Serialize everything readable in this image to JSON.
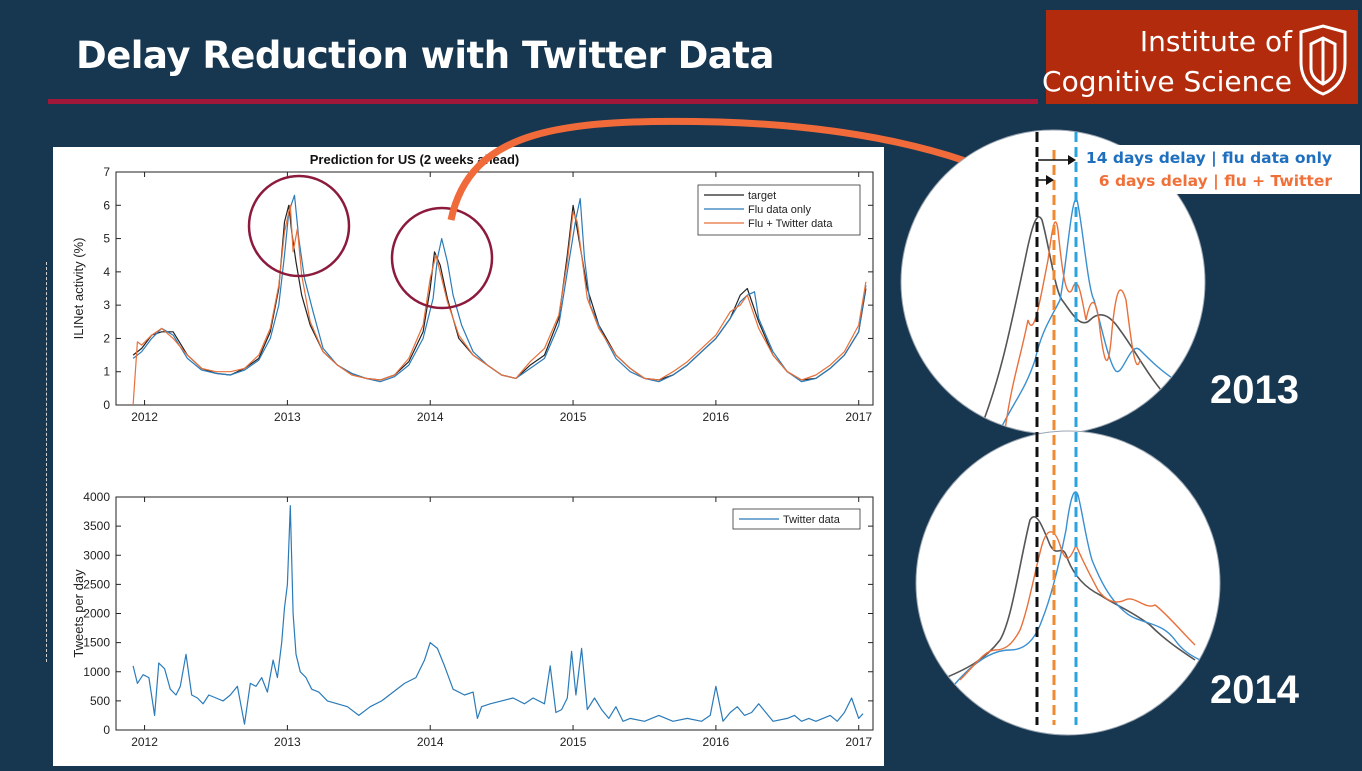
{
  "slide": {
    "title": "Delay Reduction with Twitter Data",
    "logo": {
      "line1": "Institute of",
      "line2": "Cognitive Science"
    },
    "zoom_annotations": {
      "flu_only_delay": "14 days delay | flu data only",
      "twitter_delay": "6 days delay | flu + Twitter",
      "year_top": "2013",
      "year_bottom": "2014"
    },
    "colors": {
      "background": "#17364f",
      "title_rule": "#a0173a",
      "logo_bg": "#b22b0c",
      "target": "#222222",
      "flu_only": "#2b7bb9",
      "flu_twitter": "#e8703a",
      "arrow": "#f06a3a",
      "circle": "#8c1a3c"
    }
  },
  "chart_data": [
    {
      "type": "line",
      "title": "Prediction for US (2 weeks ahead)",
      "ylabel": "ILINet activity (%)",
      "xlabel": "",
      "xlim": [
        2011.8,
        2017.1
      ],
      "ylim": [
        0,
        7
      ],
      "xticks": [
        "2012",
        "2013",
        "2014",
        "2015",
        "2016",
        "2017"
      ],
      "yticks": [
        "0",
        "1",
        "2",
        "3",
        "4",
        "5",
        "6",
        "7"
      ],
      "legend_position": "top-right",
      "series": [
        {
          "name": "target",
          "color": "#222222",
          "x": [
            2011.92,
            2011.98,
            2012.05,
            2012.12,
            2012.2,
            2012.3,
            2012.4,
            2012.5,
            2012.6,
            2012.7,
            2012.8,
            2012.88,
            2012.94,
            2012.98,
            2013.01,
            2013.03,
            2013.06,
            2013.1,
            2013.16,
            2013.25,
            2013.35,
            2013.45,
            2013.55,
            2013.65,
            2013.75,
            2013.85,
            2013.95,
            2014.0,
            2014.03,
            2014.07,
            2014.12,
            2014.2,
            2014.3,
            2014.4,
            2014.5,
            2014.6,
            2014.7,
            2014.8,
            2014.9,
            2014.96,
            2015.0,
            2015.04,
            2015.1,
            2015.18,
            2015.3,
            2015.4,
            2015.5,
            2015.6,
            2015.7,
            2015.8,
            2015.9,
            2016.0,
            2016.1,
            2016.17,
            2016.22,
            2016.3,
            2016.4,
            2016.5,
            2016.6,
            2016.7,
            2016.8,
            2016.9,
            2017.0,
            2017.05
          ],
          "y": [
            1.5,
            1.7,
            2.1,
            2.2,
            2.2,
            1.5,
            1.1,
            0.95,
            0.9,
            1.1,
            1.4,
            2.2,
            3.5,
            5.5,
            6.0,
            5.2,
            4.3,
            3.3,
            2.4,
            1.6,
            1.2,
            0.95,
            0.8,
            0.75,
            0.9,
            1.3,
            2.2,
            3.5,
            4.6,
            4.2,
            3.2,
            2.0,
            1.5,
            1.2,
            0.9,
            0.8,
            1.2,
            1.5,
            2.6,
            4.5,
            6.0,
            5.0,
            3.5,
            2.4,
            1.5,
            1.1,
            0.8,
            0.75,
            0.9,
            1.2,
            1.6,
            2.0,
            2.6,
            3.3,
            3.5,
            2.5,
            1.5,
            1.0,
            0.75,
            0.8,
            1.1,
            1.5,
            2.2,
            3.5
          ]
        },
        {
          "name": "Flu data only",
          "color": "#2b7bb9",
          "x": [
            2011.92,
            2011.98,
            2012.05,
            2012.12,
            2012.2,
            2012.3,
            2012.4,
            2012.5,
            2012.6,
            2012.7,
            2012.8,
            2012.88,
            2012.94,
            2012.98,
            2013.01,
            2013.05,
            2013.08,
            2013.12,
            2013.18,
            2013.25,
            2013.35,
            2013.45,
            2013.55,
            2013.65,
            2013.75,
            2013.85,
            2013.95,
            2014.02,
            2014.05,
            2014.08,
            2014.12,
            2014.16,
            2014.22,
            2014.3,
            2014.4,
            2014.5,
            2014.6,
            2014.7,
            2014.8,
            2014.9,
            2014.96,
            2015.02,
            2015.05,
            2015.08,
            2015.12,
            2015.2,
            2015.3,
            2015.4,
            2015.5,
            2015.6,
            2015.7,
            2015.8,
            2015.9,
            2016.0,
            2016.1,
            2016.17,
            2016.22,
            2016.27,
            2016.3,
            2016.4,
            2016.5,
            2016.6,
            2016.7,
            2016.8,
            2016.9,
            2017.0,
            2017.05
          ],
          "y": [
            1.4,
            1.6,
            2.0,
            2.3,
            2.1,
            1.4,
            1.05,
            0.95,
            0.9,
            1.05,
            1.35,
            2.0,
            3.0,
            4.5,
            5.8,
            6.3,
            5.0,
            3.8,
            2.8,
            1.7,
            1.2,
            0.95,
            0.8,
            0.7,
            0.85,
            1.2,
            2.0,
            3.2,
            4.4,
            5.0,
            4.3,
            3.3,
            2.4,
            1.6,
            1.2,
            0.9,
            0.8,
            1.1,
            1.4,
            2.4,
            4.0,
            5.6,
            6.2,
            4.4,
            3.0,
            2.2,
            1.4,
            1.0,
            0.8,
            0.7,
            0.9,
            1.2,
            1.6,
            2.0,
            2.6,
            3.1,
            3.3,
            3.4,
            2.6,
            1.6,
            1.0,
            0.7,
            0.8,
            1.1,
            1.5,
            2.2,
            3.6
          ]
        },
        {
          "name": "Flu + Twitter data",
          "color": "#e8703a",
          "x": [
            2011.92,
            2011.95,
            2011.98,
            2012.05,
            2012.12,
            2012.2,
            2012.3,
            2012.4,
            2012.5,
            2012.6,
            2012.7,
            2012.8,
            2012.88,
            2012.94,
            2012.98,
            2013.02,
            2013.04,
            2013.07,
            2013.1,
            2013.16,
            2013.25,
            2013.35,
            2013.45,
            2013.55,
            2013.65,
            2013.75,
            2013.85,
            2013.95,
            2014.0,
            2014.04,
            2014.08,
            2014.12,
            2014.2,
            2014.3,
            2014.4,
            2014.5,
            2014.6,
            2014.7,
            2014.8,
            2014.9,
            2014.96,
            2015.0,
            2015.03,
            2015.06,
            2015.1,
            2015.18,
            2015.3,
            2015.4,
            2015.5,
            2015.6,
            2015.7,
            2015.8,
            2015.9,
            2016.0,
            2016.1,
            2016.17,
            2016.22,
            2016.3,
            2016.4,
            2016.5,
            2016.6,
            2016.7,
            2016.8,
            2016.9,
            2017.0,
            2017.05
          ],
          "y": [
            0.0,
            1.9,
            1.8,
            2.1,
            2.3,
            2.0,
            1.5,
            1.1,
            1.0,
            1.0,
            1.1,
            1.5,
            2.3,
            3.6,
            5.2,
            6.0,
            4.6,
            5.3,
            3.9,
            2.5,
            1.6,
            1.2,
            0.9,
            0.8,
            0.75,
            0.9,
            1.4,
            2.4,
            3.8,
            4.5,
            3.8,
            3.1,
            2.1,
            1.5,
            1.2,
            0.9,
            0.8,
            1.3,
            1.7,
            2.7,
            4.3,
            5.8,
            5.5,
            4.5,
            3.2,
            2.3,
            1.5,
            1.1,
            0.8,
            0.75,
            1.0,
            1.3,
            1.7,
            2.1,
            2.8,
            3.0,
            3.3,
            2.3,
            1.5,
            1.0,
            0.75,
            0.9,
            1.2,
            1.6,
            2.4,
            3.7
          ]
        }
      ]
    },
    {
      "type": "line",
      "title": "",
      "ylabel": "Tweets per day",
      "xlabel": "",
      "xlim": [
        2011.8,
        2017.1
      ],
      "ylim": [
        0,
        4000
      ],
      "xticks": [
        "2012",
        "2013",
        "2014",
        "2015",
        "2016",
        "2017"
      ],
      "yticks": [
        "0",
        "500",
        "1000",
        "1500",
        "2000",
        "2500",
        "3000",
        "3500",
        "4000"
      ],
      "legend_position": "top-right",
      "series": [
        {
          "name": "Twitter data",
          "color": "#2b7bb9",
          "x": [
            2011.92,
            2011.95,
            2011.99,
            2012.03,
            2012.07,
            2012.1,
            2012.14,
            2012.18,
            2012.22,
            2012.25,
            2012.29,
            2012.33,
            2012.37,
            2012.41,
            2012.45,
            2012.5,
            2012.55,
            2012.6,
            2012.65,
            2012.7,
            2012.74,
            2012.78,
            2012.82,
            2012.86,
            2012.9,
            2012.93,
            2012.96,
            2012.98,
            2013.0,
            2013.02,
            2013.04,
            2013.06,
            2013.09,
            2013.13,
            2013.17,
            2013.22,
            2013.28,
            2013.35,
            2013.42,
            2013.5,
            2013.58,
            2013.66,
            2013.74,
            2013.82,
            2013.9,
            2013.96,
            2014.0,
            2014.05,
            2014.1,
            2014.16,
            2014.24,
            2014.3,
            2014.33,
            2014.36,
            2014.42,
            2014.5,
            2014.58,
            2014.66,
            2014.72,
            2014.8,
            2014.84,
            2014.88,
            2014.92,
            2014.96,
            2014.99,
            2015.02,
            2015.06,
            2015.1,
            2015.15,
            2015.2,
            2015.25,
            2015.3,
            2015.35,
            2015.4,
            2015.5,
            2015.6,
            2015.7,
            2015.8,
            2015.9,
            2015.96,
            2016.0,
            2016.05,
            2016.1,
            2016.15,
            2016.2,
            2016.25,
            2016.3,
            2016.4,
            2016.5,
            2016.55,
            2016.6,
            2016.65,
            2016.7,
            2016.8,
            2016.85,
            2016.9,
            2016.95,
            2017.0,
            2017.03
          ],
          "y": [
            1100,
            800,
            950,
            900,
            250,
            1150,
            1050,
            700,
            600,
            750,
            1300,
            600,
            550,
            450,
            600,
            550,
            500,
            600,
            750,
            100,
            800,
            750,
            900,
            650,
            1200,
            900,
            1500,
            2100,
            2500,
            3850,
            2000,
            1300,
            1000,
            900,
            700,
            650,
            500,
            450,
            400,
            250,
            400,
            500,
            650,
            800,
            900,
            1200,
            1500,
            1400,
            1100,
            700,
            600,
            650,
            200,
            400,
            450,
            500,
            550,
            450,
            550,
            450,
            1100,
            300,
            350,
            550,
            1350,
            600,
            1400,
            350,
            550,
            350,
            200,
            400,
            150,
            200,
            150,
            250,
            150,
            200,
            150,
            250,
            750,
            150,
            300,
            400,
            250,
            300,
            450,
            150,
            200,
            250,
            150,
            200,
            150,
            250,
            150,
            300,
            550,
            200,
            280
          ]
        }
      ]
    }
  ]
}
